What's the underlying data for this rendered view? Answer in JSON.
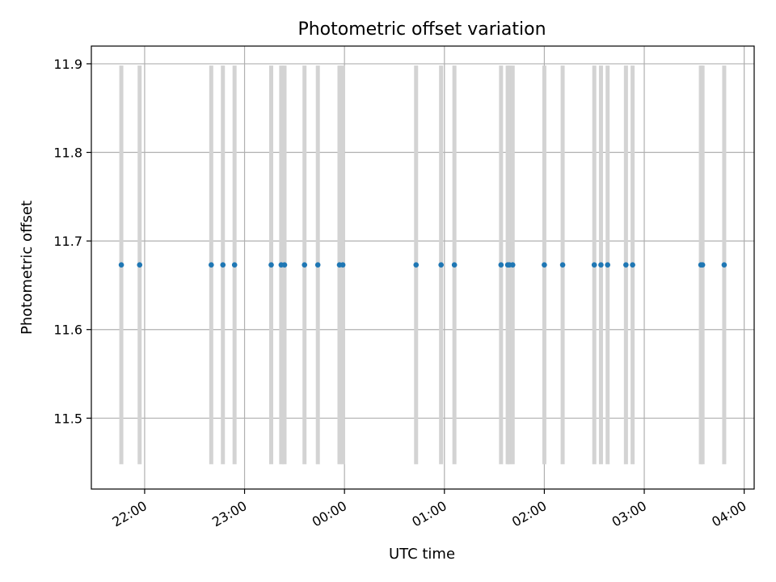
{
  "chart_data": {
    "type": "scatter",
    "title": "Photometric offset variation",
    "xlabel": "UTC time",
    "ylabel": "Photometric offset",
    "x_axis": {
      "kind": "time",
      "range": [
        "21:28",
        "04:06"
      ],
      "ticks": [
        "22:00",
        "23:00",
        "00:00",
        "01:00",
        "02:00",
        "03:00",
        "04:00"
      ]
    },
    "y_axis": {
      "range": [
        11.42,
        11.92
      ],
      "ticks": [
        "11.5",
        "11.6",
        "11.7",
        "11.8",
        "11.9"
      ]
    },
    "grid": true,
    "vertical_bands": {
      "color": "#d3d3d3",
      "y_range": [
        11.448,
        11.898
      ]
    },
    "series": [
      {
        "color": "#1f77b4",
        "marker": "dot",
        "x": [
          "21:46",
          "21:57",
          "22:40",
          "22:47",
          "22:54",
          "23:16",
          "23:22",
          "23:24",
          "23:36",
          "23:44",
          "23:57",
          "23:59",
          "00:43",
          "00:58",
          "01:06",
          "01:34",
          "01:38",
          "01:39",
          "01:41",
          "02:00",
          "02:11",
          "02:30",
          "02:34",
          "02:38",
          "02:49",
          "02:53",
          "03:34",
          "03:35",
          "03:48"
        ],
        "y": [
          11.673,
          11.673,
          11.673,
          11.673,
          11.673,
          11.673,
          11.673,
          11.673,
          11.673,
          11.673,
          11.673,
          11.673,
          11.673,
          11.673,
          11.673,
          11.673,
          11.673,
          11.673,
          11.673,
          11.673,
          11.673,
          11.673,
          11.673,
          11.673,
          11.673,
          11.673,
          11.673,
          11.673,
          11.673
        ]
      }
    ]
  }
}
